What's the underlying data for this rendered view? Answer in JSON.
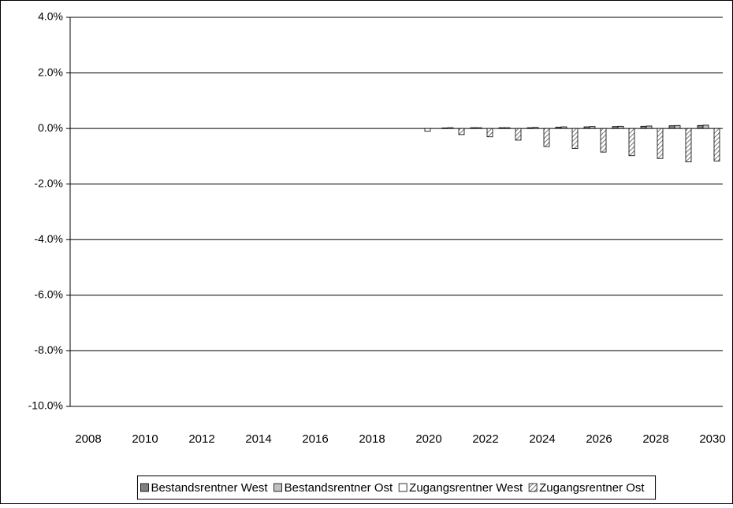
{
  "chart_data": {
    "type": "bar",
    "categories": [
      "2008",
      null,
      "2010",
      null,
      "2012",
      null,
      "2014",
      null,
      "2016",
      null,
      "2018",
      null,
      "2020",
      null,
      "2022",
      null,
      "2024",
      null,
      "2026",
      null,
      "2028",
      null,
      "2030"
    ],
    "series": [
      {
        "name": "Bestandsrentner West",
        "color": "#808080",
        "hatch": false,
        "values": [
          null,
          null,
          null,
          null,
          null,
          null,
          null,
          null,
          null,
          null,
          null,
          null,
          0,
          0.02,
          0.03,
          0.03,
          0.03,
          0.05,
          0.06,
          0.07,
          0.08,
          0.1,
          0.11
        ]
      },
      {
        "name": "Bestandsrentner Ost",
        "color": "#c0c0c0",
        "hatch": false,
        "values": [
          null,
          null,
          null,
          null,
          null,
          null,
          null,
          null,
          null,
          null,
          null,
          null,
          0,
          0.03,
          0.03,
          0.03,
          0.04,
          0.06,
          0.07,
          0.08,
          0.09,
          0.11,
          0.12
        ]
      },
      {
        "name": "Zugangsrentner West",
        "color": "#ffffff",
        "hatch": false,
        "values": [
          null,
          null,
          null,
          null,
          null,
          null,
          null,
          null,
          null,
          null,
          null,
          null,
          -0.1,
          0,
          0,
          0,
          0,
          0,
          0,
          0,
          0,
          0,
          0
        ]
      },
      {
        "name": "Zugangsrentner Ost",
        "color": "#a0a0a0",
        "hatch": true,
        "values": [
          null,
          null,
          null,
          null,
          null,
          null,
          null,
          null,
          null,
          null,
          null,
          null,
          0,
          -0.22,
          -0.3,
          -0.42,
          -0.65,
          -0.72,
          -0.85,
          -0.98,
          -1.08,
          -1.2,
          -1.17
        ]
      }
    ],
    "ylim": [
      -10,
      4
    ],
    "yticks": [
      {
        "value": 4,
        "label": "4.0%"
      },
      {
        "value": 2,
        "label": "2.0%"
      },
      {
        "value": 0,
        "label": "0.0%"
      },
      {
        "value": -2,
        "label": "-2.0%"
      },
      {
        "value": -4,
        "label": "-4.0%"
      },
      {
        "value": -6,
        "label": "-6.0%"
      },
      {
        "value": -8,
        "label": "-8.0%"
      },
      {
        "value": -10,
        "label": "-10.0%"
      }
    ],
    "grid": true,
    "legend": "bottom"
  }
}
